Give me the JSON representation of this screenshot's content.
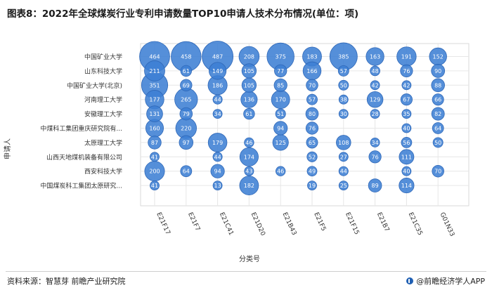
{
  "title": "图表8：2022年全球煤炭行业专利申请数量TOP10申请人技术分布情况(单位：项)",
  "footer": {
    "source": "资料来源：智慧芽 前瞻产业研究院",
    "brand": "@前瞻经济学人APP"
  },
  "colors": {
    "bubble_fill": "#3d7fd4",
    "bubble_stroke": "#2f68b8",
    "label_text": "#ffffff",
    "grid": "#e6e6e6"
  },
  "chart_data": {
    "type": "bubble",
    "xlabel": "分类号",
    "ylabel": "申请人",
    "x_categories": [
      "E21F17",
      "E21F7",
      "E21C41",
      "E21D20",
      "E21B43",
      "E21F5",
      "E21F15",
      "E21B7",
      "E21C35",
      "G01N33"
    ],
    "y_categories": [
      "中国矿业大学",
      "山东科技大学",
      "中国矿业大学(北京)",
      "河南理工大学",
      "安徽理工大学",
      "中煤科工集团重庆研究院有...",
      "太原理工大学",
      "山西天地煤机装备有限公司",
      "西安科技大学",
      "中国煤炭科工集团太原研究..."
    ],
    "values": [
      [
        464,
        458,
        487,
        208,
        375,
        183,
        385,
        163,
        191,
        152
      ],
      [
        211,
        61,
        149,
        105,
        77,
        166,
        57,
        48,
        76,
        90
      ],
      [
        351,
        69,
        186,
        105,
        85,
        70,
        50,
        42,
        42,
        88
      ],
      [
        177,
        265,
        44,
        136,
        170,
        57,
        38,
        129,
        67,
        66
      ],
      [
        131,
        79,
        34,
        61,
        51,
        80,
        30,
        28,
        35,
        82
      ],
      [
        160,
        220,
        null,
        null,
        94,
        76,
        null,
        null,
        40,
        64
      ],
      [
        87,
        97,
        179,
        46,
        125,
        65,
        108,
        34,
        56,
        50
      ],
      [
        41,
        null,
        44,
        174,
        null,
        52,
        27,
        76,
        111,
        null
      ],
      [
        200,
        64,
        94,
        43,
        46,
        49,
        44,
        null,
        40,
        70
      ],
      [
        41,
        null,
        13,
        182,
        null,
        19,
        25,
        89,
        114,
        null
      ]
    ]
  }
}
